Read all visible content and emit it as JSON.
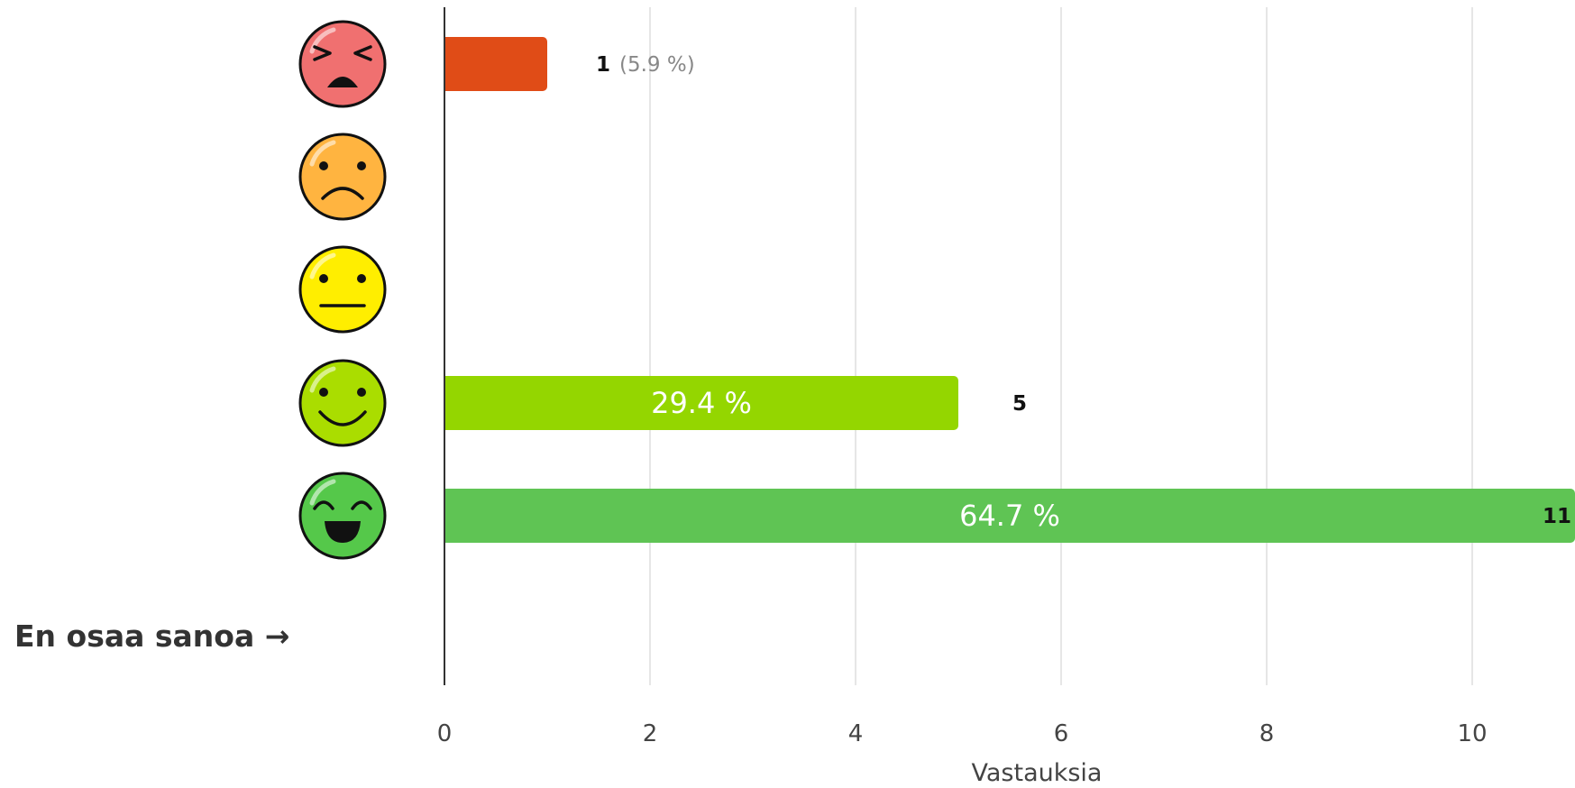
{
  "chart_data": {
    "type": "bar",
    "orientation": "horizontal",
    "xlabel": "Vastauksia",
    "xlim": [
      0,
      11
    ],
    "xticks": [
      "0",
      "2",
      "4",
      "6",
      "8",
      "10"
    ],
    "grid": true,
    "categories": [
      {
        "icon": "very-unhappy-face-icon",
        "color": "#f07070"
      },
      {
        "icon": "sad-face-icon",
        "color": "#ffb440"
      },
      {
        "icon": "neutral-face-icon",
        "color": "#ffee00"
      },
      {
        "icon": "smiling-face-icon",
        "color": "#aadd00"
      },
      {
        "icon": "very-happy-face-icon",
        "color": "#55c84a"
      },
      {
        "label": "En osaa sanoa →"
      }
    ],
    "values": [
      1,
      0,
      0,
      5,
      11,
      0
    ],
    "count_labels": [
      "1",
      "",
      "",
      "5",
      "11",
      ""
    ],
    "percent_labels": [
      "(5.9 %)",
      "",
      "",
      "29.4 %",
      "64.7 %",
      ""
    ],
    "bar_colors": [
      "#e04c17",
      "#ff9800",
      "#ffd400",
      "#94d600",
      "#5fc454",
      "#bbbbbb"
    ]
  }
}
